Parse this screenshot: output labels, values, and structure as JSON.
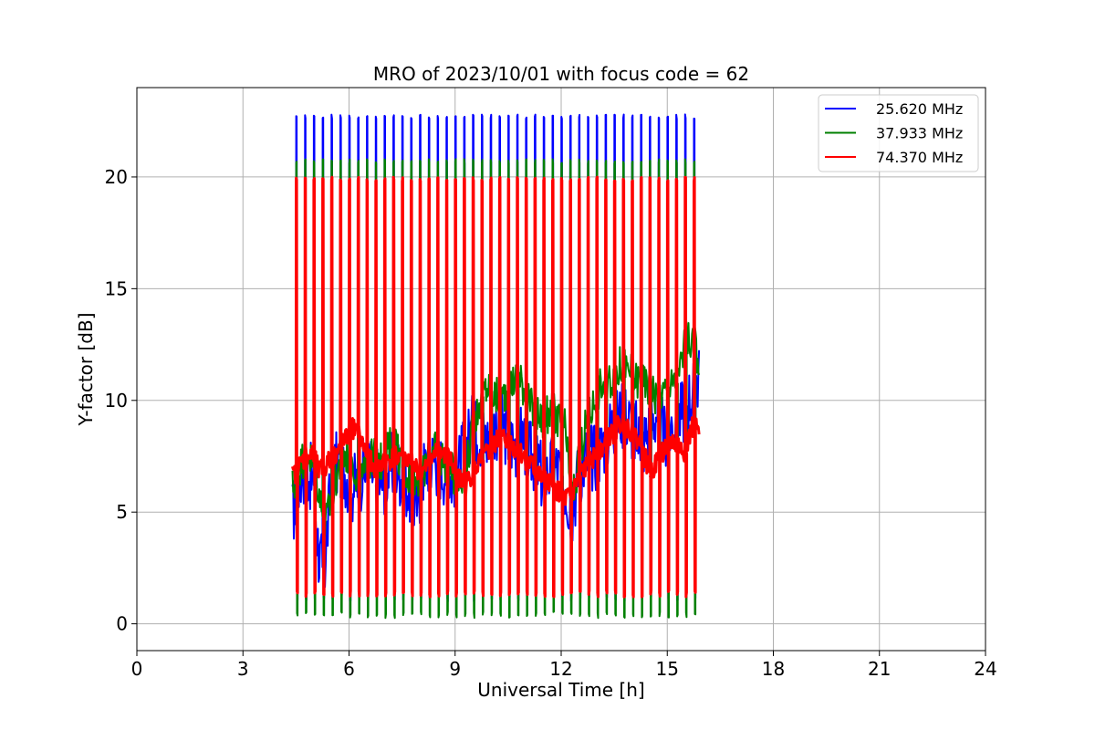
{
  "chart_data": {
    "type": "line",
    "title": "MRO of 2023/10/01 with focus code = 62",
    "xlabel": "Universal Time [h]",
    "ylabel": "Y-factor [dB]",
    "xlim": [
      0,
      24
    ],
    "ylim": [
      -1.2,
      24
    ],
    "xticks": [
      0,
      3,
      6,
      9,
      12,
      15,
      18,
      21,
      24
    ],
    "yticks": [
      0,
      5,
      10,
      15,
      20
    ],
    "grid": true,
    "legend_position": "top-right",
    "series": [
      {
        "name": "25.620 MHz",
        "color": "#0000ff",
        "x": [
          4.4,
          4.5,
          4.65,
          4.8,
          5.0,
          5.15,
          5.3,
          5.5,
          5.7,
          5.9,
          6.1,
          6.3,
          6.5,
          6.7,
          6.9,
          7.1,
          7.3,
          7.5,
          7.7,
          7.9,
          8.1,
          8.3,
          8.5,
          8.7,
          8.9,
          9.1,
          9.3,
          9.5,
          9.7,
          9.9,
          10.1,
          10.3,
          10.5,
          10.7,
          10.9,
          11.1,
          11.3,
          11.5,
          11.7,
          11.9,
          12.1,
          12.3,
          12.5,
          12.7,
          12.9,
          13.1,
          13.3,
          13.5,
          13.7,
          13.9,
          14.1,
          14.3,
          14.5,
          14.7,
          14.9,
          15.1,
          15.3,
          15.5,
          15.7,
          15.9
        ],
        "y": [
          4.9,
          5.6,
          6.8,
          7.0,
          6.2,
          3.0,
          2.3,
          6.5,
          7.3,
          6.8,
          6.0,
          6.5,
          7.0,
          6.7,
          6.2,
          6.8,
          7.2,
          6.6,
          6.0,
          5.2,
          6.8,
          7.5,
          7.2,
          6.9,
          6.5,
          7.0,
          8.0,
          8.8,
          8.5,
          8.2,
          8.8,
          9.0,
          8.4,
          8.0,
          8.5,
          7.6,
          7.2,
          6.4,
          6.9,
          7.0,
          6.2,
          5.0,
          6.8,
          7.5,
          7.4,
          7.8,
          8.5,
          9.0,
          9.4,
          9.2,
          8.5,
          8.0,
          8.8,
          9.5,
          8.4,
          8.8,
          9.2,
          9.6,
          10.4,
          11.0
        ],
        "peak_y": 22.8,
        "low_y": 1.0
      },
      {
        "name": "37.933 MHz",
        "color": "#008000",
        "x": [
          4.4,
          4.5,
          4.65,
          4.8,
          5.0,
          5.15,
          5.3,
          5.5,
          5.7,
          5.9,
          6.1,
          6.3,
          6.5,
          6.7,
          6.9,
          7.1,
          7.3,
          7.5,
          7.7,
          7.9,
          8.1,
          8.3,
          8.5,
          8.7,
          8.9,
          9.1,
          9.3,
          9.5,
          9.7,
          9.9,
          10.1,
          10.3,
          10.5,
          10.7,
          10.9,
          11.1,
          11.3,
          11.5,
          11.7,
          11.9,
          12.1,
          12.3,
          12.5,
          12.7,
          12.9,
          13.1,
          13.3,
          13.5,
          13.7,
          13.9,
          14.1,
          14.3,
          14.5,
          14.7,
          14.9,
          15.1,
          15.3,
          15.5,
          15.7,
          15.9
        ],
        "y": [
          6.1,
          6.5,
          7.2,
          7.8,
          7.0,
          6.0,
          4.2,
          5.6,
          7.0,
          7.6,
          7.2,
          6.4,
          6.8,
          7.6,
          7.2,
          7.8,
          8.2,
          7.0,
          6.6,
          6.4,
          6.8,
          7.5,
          7.8,
          7.2,
          6.8,
          6.4,
          7.0,
          8.6,
          10.0,
          10.6,
          10.2,
          10.0,
          10.6,
          11.0,
          10.8,
          9.8,
          9.4,
          9.0,
          9.6,
          9.2,
          8.8,
          5.5,
          7.2,
          9.0,
          9.8,
          10.6,
          10.8,
          11.2,
          11.6,
          11.4,
          11.0,
          10.8,
          10.6,
          10.2,
          10.4,
          10.6,
          10.8,
          12.6,
          12.8,
          11.8
        ],
        "peak_y": 20.8,
        "low_y": 0.25
      },
      {
        "name": "74.370 MHz",
        "color": "#ff0000",
        "x": [
          4.4,
          4.5,
          4.65,
          4.8,
          5.0,
          5.15,
          5.3,
          5.5,
          5.7,
          5.9,
          6.1,
          6.3,
          6.5,
          6.7,
          6.9,
          7.1,
          7.3,
          7.5,
          7.7,
          7.9,
          8.1,
          8.3,
          8.5,
          8.7,
          8.9,
          9.1,
          9.3,
          9.5,
          9.7,
          9.9,
          10.1,
          10.3,
          10.5,
          10.7,
          10.9,
          11.1,
          11.3,
          11.5,
          11.7,
          11.9,
          12.1,
          12.3,
          12.5,
          12.7,
          12.9,
          13.1,
          13.3,
          13.5,
          13.7,
          13.9,
          14.1,
          14.3,
          14.5,
          14.7,
          14.9,
          15.1,
          15.3,
          15.5,
          15.7,
          15.9
        ],
        "y": [
          6.6,
          6.8,
          7.2,
          7.6,
          7.5,
          6.8,
          7.0,
          7.4,
          7.8,
          8.2,
          8.8,
          8.4,
          7.6,
          7.0,
          7.1,
          7.3,
          7.5,
          7.6,
          7.2,
          7.0,
          6.8,
          7.2,
          7.8,
          7.6,
          7.2,
          6.5,
          6.2,
          6.8,
          7.2,
          7.6,
          8.0,
          8.4,
          8.2,
          7.8,
          7.6,
          7.2,
          6.8,
          6.4,
          6.2,
          6.0,
          5.6,
          5.8,
          6.6,
          7.0,
          7.4,
          7.8,
          8.2,
          8.6,
          9.0,
          8.8,
          8.4,
          7.8,
          6.8,
          7.2,
          7.8,
          8.2,
          8.0,
          7.6,
          8.8,
          8.6
        ],
        "peak_y": 20.0,
        "low_y": 1.2
      }
    ],
    "spikes": {
      "x": [
        4.5,
        4.75,
        5.0,
        5.25,
        5.5,
        5.75,
        6.0,
        6.25,
        6.5,
        6.75,
        7.0,
        7.25,
        7.5,
        7.75,
        8.0,
        8.25,
        8.5,
        8.75,
        9.0,
        9.25,
        9.5,
        9.75,
        10.0,
        10.25,
        10.5,
        10.75,
        11.0,
        11.25,
        11.5,
        11.75,
        12.0,
        12.25,
        12.5,
        12.75,
        13.0,
        13.25,
        13.5,
        13.75,
        14.0,
        14.25,
        14.5,
        14.75,
        15.0,
        15.25,
        15.5,
        15.75
      ]
    }
  }
}
